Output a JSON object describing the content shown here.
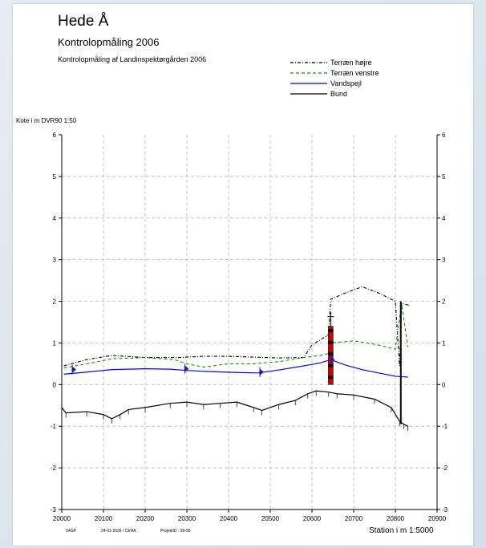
{
  "chart_data": {
    "type": "line",
    "title": "Hede Å",
    "subtitle": "Kontrolopmåling 2006",
    "caption": "Kontrolopmåling af Landinspektørgården 2006",
    "ylabel": "Kote i m DVR90 1:50",
    "xlabel": "Station i m  1:5000",
    "footer": {
      "left": "VASP",
      "date": "24-01-2026 / CEHA",
      "project": "ProjektID : 99-95"
    },
    "xlim": [
      20000,
      20900
    ],
    "ylim": [
      -3,
      6
    ],
    "xticks": [
      20000,
      20100,
      20200,
      20300,
      20400,
      20500,
      20600,
      20700,
      20800,
      20900
    ],
    "yticks": [
      -3,
      -2,
      -1,
      0,
      1,
      2,
      3,
      4,
      5,
      6
    ],
    "grid": true,
    "legend_position": "top-right",
    "series": [
      {
        "name": "Terræn højre",
        "color": "#000000",
        "style": "dash-dot",
        "x": [
          20005,
          20060,
          20120,
          20200,
          20280,
          20340,
          20400,
          20460,
          20520,
          20580,
          20600,
          20640,
          20645,
          20680,
          20720,
          20760,
          20800,
          20810,
          20815,
          20835
        ],
        "y": [
          0.45,
          0.6,
          0.7,
          0.65,
          0.65,
          0.68,
          0.68,
          0.66,
          0.64,
          0.65,
          0.95,
          1.2,
          2.05,
          2.2,
          2.35,
          2.2,
          2.0,
          0.45,
          1.95,
          1.9
        ]
      },
      {
        "name": "Terræn venstre",
        "color": "#1a8a1a",
        "style": "dashed",
        "x": [
          20005,
          20060,
          20120,
          20200,
          20270,
          20300,
          20340,
          20400,
          20460,
          20520,
          20580,
          20620,
          20640,
          20645,
          20700,
          20760,
          20800,
          20815,
          20830
        ],
        "y": [
          0.4,
          0.5,
          0.62,
          0.65,
          0.6,
          0.5,
          0.42,
          0.5,
          0.5,
          0.55,
          0.65,
          0.7,
          0.75,
          1.0,
          1.05,
          0.95,
          0.85,
          1.95,
          0.9
        ]
      },
      {
        "name": "Vandspejl",
        "color": "#0000ff",
        "style": "solid",
        "x": [
          20005,
          20060,
          20120,
          20200,
          20260,
          20300,
          20360,
          20420,
          20470,
          20520,
          20580,
          20620,
          20645,
          20680,
          20720,
          20760,
          20800,
          20830
        ],
        "y": [
          0.25,
          0.3,
          0.36,
          0.38,
          0.37,
          0.34,
          0.31,
          0.29,
          0.28,
          0.35,
          0.45,
          0.52,
          0.6,
          0.47,
          0.36,
          0.28,
          0.2,
          0.18
        ]
      },
      {
        "name": "Bund",
        "color": "#000000",
        "style": "solid",
        "x": [
          20000,
          20010,
          20060,
          20100,
          20120,
          20140,
          20160,
          20200,
          20260,
          20300,
          20340,
          20380,
          20420,
          20460,
          20480,
          20520,
          20560,
          20590,
          20610,
          20640,
          20660,
          20700,
          20750,
          20790,
          20810,
          20820,
          20830
        ],
        "y": [
          -0.55,
          -0.68,
          -0.65,
          -0.72,
          -0.82,
          -0.72,
          -0.6,
          -0.55,
          -0.45,
          -0.42,
          -0.48,
          -0.45,
          -0.42,
          -0.55,
          -0.62,
          -0.48,
          -0.38,
          -0.22,
          -0.15,
          -0.18,
          -0.22,
          -0.25,
          -0.35,
          -0.55,
          -0.88,
          -0.95,
          -1.0
        ]
      }
    ],
    "structures": [
      {
        "type": "bridge",
        "x": 20645,
        "top": 1.4,
        "bottom": 0.0,
        "colors": [
          "#cc0000",
          "#000000"
        ]
      },
      {
        "type": "culvert",
        "x": 20813,
        "top": 2.0,
        "bottom": -0.95,
        "color": "#000000"
      }
    ],
    "markers": [
      {
        "x": 20025,
        "y": 0.36
      },
      {
        "x": 20295,
        "y": 0.38
      },
      {
        "x": 20475,
        "y": 0.3
      },
      {
        "x": 20645,
        "y": 0.6
      }
    ]
  }
}
